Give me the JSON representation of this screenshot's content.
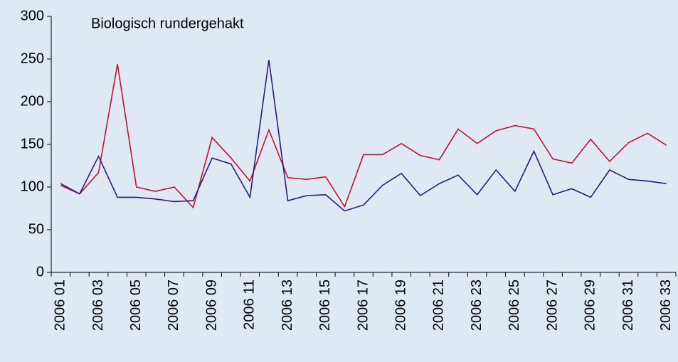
{
  "chart_data": {
    "type": "line",
    "title": "Biologisch rundergehakt",
    "categories": [
      "2006 01",
      null,
      "2006 03",
      null,
      "2006 05",
      null,
      "2006 07",
      null,
      "2006 09",
      null,
      "2006 11",
      null,
      "2006 13",
      null,
      "2006 15",
      null,
      "2006 17",
      null,
      "2006 19",
      null,
      "2006 21",
      null,
      "2006 23",
      null,
      "2006 25",
      null,
      "2006 27",
      null,
      "2006 29",
      null,
      "2006 31",
      null,
      "2006 33"
    ],
    "series": [
      {
        "color": "#c8102e",
        "values": [
          102,
          92,
          117,
          244,
          100,
          95,
          100,
          76,
          158,
          134,
          107,
          167,
          111,
          109,
          112,
          77,
          138,
          138,
          151,
          137,
          132,
          168,
          151,
          166,
          172,
          168,
          133,
          128,
          156,
          130,
          152,
          163,
          149
        ]
      },
      {
        "color": "#2e1a7a",
        "values": [
          104,
          92,
          136,
          88,
          88,
          86,
          83,
          84,
          134,
          127,
          88,
          249,
          84,
          90,
          91,
          72,
          79,
          102,
          116,
          90,
          104,
          114,
          91,
          120,
          95,
          142,
          91,
          98,
          88,
          120,
          109,
          107,
          104
        ]
      }
    ],
    "ylim": [
      0,
      300
    ],
    "yticks": [
      0,
      50,
      100,
      150,
      200,
      250,
      300
    ]
  }
}
